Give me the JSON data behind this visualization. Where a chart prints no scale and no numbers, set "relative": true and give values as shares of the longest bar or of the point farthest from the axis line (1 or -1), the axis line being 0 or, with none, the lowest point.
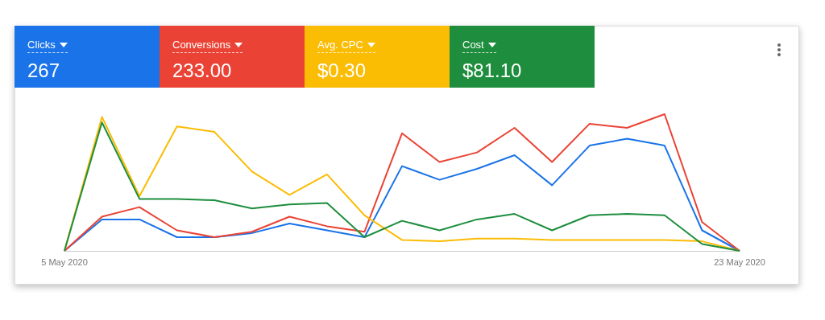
{
  "chart_data": {
    "type": "line",
    "relative": true,
    "legend": "top left",
    "marker": "none",
    "categories": [
      "5 May 2020",
      null,
      null,
      null,
      null,
      null,
      null,
      null,
      null,
      null,
      null,
      null,
      null,
      null,
      null,
      null,
      null,
      null,
      "23 May 2020"
    ],
    "annotations": [
      "267",
      "233.00",
      "$0.30",
      "$81.10"
    ],
    "series": [
      {
        "name": "Clicks",
        "color": "#1a73e8",
        "values": [
          0,
          0.23,
          0.23,
          0.1,
          0.1,
          0.13,
          0.2,
          0.15,
          0.1,
          0.62,
          0.52,
          0.6,
          0.7,
          0.48,
          0.77,
          0.82,
          0.77,
          0.15,
          0
        ]
      },
      {
        "name": "Conversions",
        "color": "#ea4335",
        "values": [
          0,
          0.25,
          0.32,
          0.15,
          0.1,
          0.14,
          0.25,
          0.18,
          0.14,
          0.86,
          0.65,
          0.72,
          0.9,
          0.65,
          0.93,
          0.9,
          1,
          0.21,
          0
        ]
      },
      {
        "name": "Avg. CPC",
        "color": "#fbbc04",
        "values": [
          0,
          0.98,
          0.4,
          0.91,
          0.87,
          0.58,
          0.41,
          0.56,
          0.26,
          0.08,
          0.07,
          0.09,
          0.09,
          0.08,
          0.08,
          0.08,
          0.08,
          0.07,
          0
        ]
      },
      {
        "name": "Cost",
        "color": "#1e8e3e",
        "values": [
          0,
          0.94,
          0.38,
          0.38,
          0.37,
          0.31,
          0.34,
          0.35,
          0.1,
          0.22,
          0.15,
          0.23,
          0.27,
          0.15,
          0.26,
          0.27,
          0.26,
          0.05,
          0
        ]
      }
    ]
  }
}
